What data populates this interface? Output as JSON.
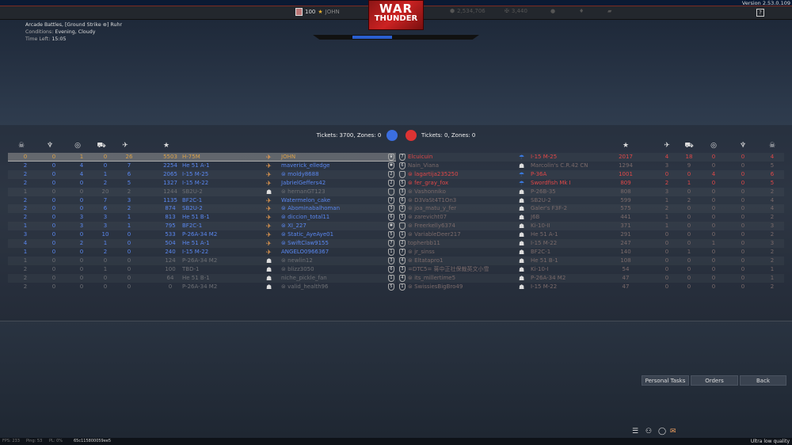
{
  "version": "Version 2.53.0.109",
  "topbar": {
    "player_level": "100",
    "player_name": "JOHN",
    "logo_line1": "WAR",
    "logo_line2": "THUNDER",
    "silver_lions": "2,534,706",
    "golden_eagles": "3,440",
    "help_label": "?"
  },
  "battle": {
    "mode": "Arcade Battles, [Ground Strike ⊜] Ruhr",
    "conditions_label": "Conditions:",
    "conditions": "Evening, Cloudy",
    "time_label": "Time Left:",
    "time_left": "15:05",
    "progress_percent": 25
  },
  "tickets": {
    "ally": "Tickets: 3700, Zones: 0",
    "enemy": "Tickets: 0, Zones: 0"
  },
  "colors": {
    "ally": "#5a87ef",
    "enemy": "#e04848",
    "self": "#d9a04a",
    "dead": "#6d6f74"
  },
  "columns": {
    "deaths": "skull-icon",
    "captures": "capture-icon",
    "assists": "assist-icon",
    "ground_kills": "tank-icon",
    "air_kills": "plane-icon",
    "score": "star-icon"
  },
  "ally_team": [
    {
      "name": "JOHN",
      "vehicle": "H-75M",
      "deaths": "0",
      "captures": "0",
      "assists": "1",
      "ground": "0",
      "air": "26",
      "score": "5503",
      "state": "self",
      "rank": "♛"
    },
    {
      "name": "maverick_elledge",
      "vehicle": "He 51 A-1",
      "deaths": "2",
      "captures": "0",
      "assists": "4",
      "ground": "0",
      "air": "7",
      "score": "2254",
      "state": "alive",
      "rank": "✱"
    },
    {
      "name": "⊜ moldy8688",
      "vehicle": "I-15 M-25",
      "deaths": "2",
      "captures": "0",
      "assists": "4",
      "ground": "1",
      "air": "6",
      "score": "2065",
      "state": "alive",
      "rank": "2"
    },
    {
      "name": "JabrielGeffers42",
      "vehicle": "I-15 M-22",
      "deaths": "2",
      "captures": "0",
      "assists": "0",
      "ground": "2",
      "air": "5",
      "score": "1327",
      "state": "alive",
      "rank": "2"
    },
    {
      "name": "⊜ hernanGT123",
      "vehicle": "SB2U-2",
      "deaths": "1",
      "captures": "0",
      "assists": "0",
      "ground": "20",
      "air": "2",
      "score": "1244",
      "state": "dead",
      "rank": ""
    },
    {
      "name": "Watermelon_cake",
      "vehicle": "BF2C-1",
      "deaths": "2",
      "captures": "0",
      "assists": "0",
      "ground": "7",
      "air": "3",
      "score": "1135",
      "state": "alive",
      "rank": "7"
    },
    {
      "name": "⊜ Abominabalhoman",
      "vehicle": "SB2U-2",
      "deaths": "2",
      "captures": "0",
      "assists": "0",
      "ground": "6",
      "air": "2",
      "score": "874",
      "state": "alive",
      "rank": "3"
    },
    {
      "name": "⊜ diccion_total11",
      "vehicle": "He 51 B-1",
      "deaths": "2",
      "captures": "0",
      "assists": "3",
      "ground": "3",
      "air": "1",
      "score": "813",
      "state": "alive",
      "rank": "6"
    },
    {
      "name": "⊜ XI_227",
      "vehicle": "BF2C-1",
      "deaths": "1",
      "captures": "0",
      "assists": "3",
      "ground": "3",
      "air": "1",
      "score": "795",
      "state": "alive",
      "rank": "✱"
    },
    {
      "name": "⊜ Static_AyeAye01",
      "vehicle": "P-26A-34 M2",
      "deaths": "3",
      "captures": "0",
      "assists": "0",
      "ground": "10",
      "air": "0",
      "score": "533",
      "state": "alive",
      "rank": "5"
    },
    {
      "name": "⊜ SwiftClaw9155",
      "vehicle": "He 51 A-1",
      "deaths": "4",
      "captures": "0",
      "assists": "2",
      "ground": "1",
      "air": "0",
      "score": "504",
      "state": "alive",
      "rank": "7"
    },
    {
      "name": "ANGELO0966367",
      "vehicle": "I-15 M-22",
      "deaths": "1",
      "captures": "0",
      "assists": "0",
      "ground": "2",
      "air": "0",
      "score": "240",
      "state": "alive",
      "rank": "1"
    },
    {
      "name": "⊜ newlin12",
      "vehicle": "P-26A-34 M2",
      "deaths": "1",
      "captures": "0",
      "assists": "0",
      "ground": "0",
      "air": "0",
      "score": "124",
      "state": "dead",
      "rank": "3"
    },
    {
      "name": "⊜ blizz3050",
      "vehicle": "TBD-1",
      "deaths": "2",
      "captures": "0",
      "assists": "0",
      "ground": "1",
      "air": "0",
      "score": "100",
      "state": "dead",
      "rank": "6"
    },
    {
      "name": "niche_pickle_fan",
      "vehicle": "He 51 B-1",
      "deaths": "2",
      "captures": "0",
      "assists": "0",
      "ground": "0",
      "air": "0",
      "score": "64",
      "state": "dead",
      "rank": "1"
    },
    {
      "name": "⊜ valid_health96",
      "vehicle": "P-26A-34 M2",
      "deaths": "2",
      "captures": "0",
      "assists": "0",
      "ground": "0",
      "air": "0",
      "score": "0",
      "state": "dead",
      "rank": "5"
    }
  ],
  "enemy_team": [
    {
      "name": "Elcuicuin",
      "vehicle": "I-15 M-25",
      "score": "2017",
      "air": "4",
      "ground": "18",
      "assists": "0",
      "captures": "0",
      "deaths": "4",
      "state": "alive",
      "rank": "7"
    },
    {
      "name": "Nain_Viana",
      "vehicle": "Marcolin's C.R.42 CN",
      "score": "1294",
      "air": "3",
      "ground": "9",
      "assists": "0",
      "captures": "0",
      "deaths": "5",
      "state": "dead",
      "rank": "6"
    },
    {
      "name": "⊜ lagartija235250",
      "vehicle": "P-36A",
      "score": "1001",
      "air": "0",
      "ground": "0",
      "assists": "4",
      "captures": "0",
      "deaths": "6",
      "state": "alive",
      "rank": ""
    },
    {
      "name": "⊜ fer_gray_fox",
      "vehicle": "Swordfish Mk I",
      "score": "809",
      "air": "2",
      "ground": "1",
      "assists": "0",
      "captures": "0",
      "deaths": "5",
      "state": "alive",
      "rank": "5"
    },
    {
      "name": "⊜ Vashonniko",
      "vehicle": "P-26B-35",
      "score": "808",
      "air": "3",
      "ground": "0",
      "assists": "0",
      "captures": "0",
      "deaths": "2",
      "state": "dead",
      "rank": "3"
    },
    {
      "name": "⊜ D3VaSt4T1On3",
      "vehicle": "SB2U-2",
      "score": "599",
      "air": "1",
      "ground": "2",
      "assists": "0",
      "captures": "0",
      "deaths": "4",
      "state": "dead",
      "rank": "6"
    },
    {
      "name": "⊜ joa_matu_y_fer",
      "vehicle": "Galer's F3F-2",
      "score": "575",
      "air": "2",
      "ground": "0",
      "assists": "0",
      "captures": "0",
      "deaths": "4",
      "state": "dead",
      "rank": "3"
    },
    {
      "name": "⊜ zarevicht07",
      "vehicle": "J6B",
      "score": "441",
      "air": "1",
      "ground": "0",
      "assists": "0",
      "captures": "0",
      "deaths": "2",
      "state": "dead",
      "rank": "5"
    },
    {
      "name": "⊜ Freerkelly6374",
      "vehicle": "Ki-10-II",
      "score": "371",
      "air": "1",
      "ground": "0",
      "assists": "0",
      "captures": "0",
      "deaths": "3",
      "state": "dead",
      "rank": ""
    },
    {
      "name": "⊜ VariableDeer217",
      "vehicle": "He 51 A-1",
      "score": "291",
      "air": "0",
      "ground": "0",
      "assists": "0",
      "captures": "0",
      "deaths": "2",
      "state": "dead",
      "rank": "1"
    },
    {
      "name": "topherbb11",
      "vehicle": "I-15 M-22",
      "score": "247",
      "air": "0",
      "ground": "0",
      "assists": "1",
      "captures": "0",
      "deaths": "3",
      "state": "dead",
      "rank": "2"
    },
    {
      "name": "⊜ jr_sinss",
      "vehicle": "BF2C-1",
      "score": "140",
      "air": "0",
      "ground": "1",
      "assists": "0",
      "captures": "0",
      "deaths": "2",
      "state": "dead",
      "rank": "7"
    },
    {
      "name": "⊜ Eltatapro1",
      "vehicle": "He 51 B-1",
      "score": "108",
      "air": "0",
      "ground": "0",
      "assists": "0",
      "captures": "0",
      "deaths": "2",
      "state": "dead",
      "rank": "4"
    },
    {
      "name": "=DTC5= 蒋中正社保裁英文小雪",
      "vehicle": "Ki-10-I",
      "score": "54",
      "air": "0",
      "ground": "0",
      "assists": "0",
      "captures": "0",
      "deaths": "1",
      "state": "dead",
      "rank": "3"
    },
    {
      "name": "⊜ its_millertime5",
      "vehicle": "P-26A-34 M2",
      "score": "47",
      "air": "0",
      "ground": "0",
      "assists": "0",
      "captures": "0",
      "deaths": "1",
      "state": "dead",
      "rank": "4"
    },
    {
      "name": "⊜ SwissiesBigBro49",
      "vehicle": "I-15 M-22",
      "score": "47",
      "air": "0",
      "ground": "0",
      "assists": "0",
      "captures": "0",
      "deaths": "2",
      "state": "dead",
      "rank": "1"
    }
  ],
  "buttons": {
    "personal_tasks": "Personal Tasks",
    "orders": "Orders",
    "back": "Back"
  },
  "footer": {
    "fps": "FPS: 233",
    "ping": "Ping: 53",
    "pl": "PL: 0%",
    "session": "65c115800059ee5",
    "quality": "Ultra low quality"
  }
}
